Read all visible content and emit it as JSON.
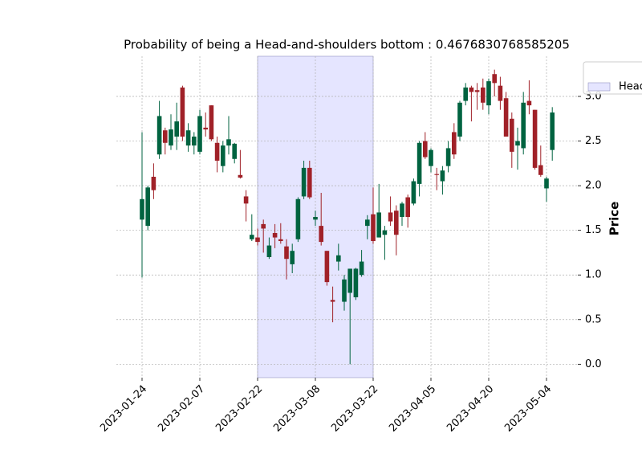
{
  "chart_data": {
    "type": "candlestick",
    "title": "Probability of being a Head-and-shoulders bottom : 0.4676830768585205",
    "y_label": "Price",
    "categories": [
      "2023-01-24",
      null,
      null,
      null,
      null,
      null,
      null,
      null,
      null,
      null,
      "2023-02-07",
      null,
      null,
      null,
      null,
      null,
      null,
      null,
      null,
      null,
      "2023-02-22",
      null,
      null,
      null,
      null,
      null,
      null,
      null,
      null,
      null,
      "2023-03-08",
      null,
      null,
      null,
      null,
      null,
      null,
      null,
      null,
      null,
      "2023-03-22",
      null,
      null,
      null,
      null,
      null,
      null,
      null,
      null,
      null,
      "2023-04-05",
      null,
      null,
      null,
      null,
      null,
      null,
      null,
      null,
      null,
      "2023-04-20",
      null,
      null,
      null,
      null,
      null,
      null,
      null,
      null,
      null,
      "2023-05-04",
      null
    ],
    "open": [
      1.62,
      1.55,
      2.1,
      2.35,
      2.62,
      2.45,
      2.55,
      3.1,
      2.45,
      2.45,
      2.38,
      2.65,
      2.9,
      2.48,
      2.22,
      2.45,
      2.3,
      2.12,
      1.88,
      1.4,
      1.42,
      1.57,
      1.2,
      1.47,
      1.4,
      1.32,
      1.12,
      1.4,
      1.88,
      2.2,
      1.62,
      1.55,
      1.27,
      0.72,
      1.15,
      0.7,
      0.8,
      0.75,
      1.0,
      1.55,
      1.68,
      1.42,
      1.45,
      1.7,
      1.72,
      1.65,
      1.87,
      1.8,
      2.02,
      2.5,
      2.22,
      2.13,
      2.05,
      2.22,
      2.6,
      2.55,
      2.95,
      3.1,
      3.07,
      3.1,
      2.9,
      3.25,
      3.12,
      2.98,
      2.75,
      2.45,
      2.42,
      2.95,
      2.85,
      2.23,
      1.97,
      2.4
    ],
    "high": [
      2.6,
      2.0,
      2.25,
      2.95,
      2.65,
      2.8,
      2.93,
      3.12,
      2.7,
      2.6,
      2.85,
      2.82,
      2.9,
      2.55,
      2.5,
      2.78,
      2.48,
      2.4,
      1.95,
      1.68,
      1.52,
      1.62,
      1.42,
      1.57,
      1.58,
      1.4,
      1.35,
      1.87,
      2.28,
      2.28,
      1.72,
      1.92,
      1.27,
      0.87,
      1.35,
      1.0,
      1.07,
      1.08,
      1.28,
      1.67,
      1.98,
      2.02,
      1.55,
      1.88,
      1.78,
      1.82,
      1.9,
      2.08,
      2.5,
      2.6,
      2.42,
      2.2,
      2.22,
      2.5,
      2.7,
      2.95,
      3.15,
      3.12,
      3.15,
      3.2,
      3.2,
      3.3,
      3.22,
      3.05,
      2.82,
      2.65,
      3.05,
      3.18,
      2.85,
      2.45,
      2.1,
      2.88
    ],
    "low": [
      0.97,
      1.5,
      1.85,
      2.3,
      2.35,
      2.4,
      2.4,
      2.5,
      2.38,
      2.35,
      2.35,
      2.55,
      2.5,
      2.15,
      2.15,
      2.35,
      2.25,
      2.08,
      1.6,
      1.38,
      1.33,
      1.25,
      1.18,
      1.3,
      1.35,
      0.95,
      1.02,
      1.37,
      1.85,
      1.85,
      1.55,
      1.33,
      0.88,
      0.47,
      1.05,
      0.6,
      0.0,
      0.72,
      0.98,
      1.4,
      1.35,
      1.42,
      1.17,
      1.55,
      1.22,
      1.55,
      1.53,
      1.78,
      1.88,
      2.3,
      2.15,
      1.95,
      1.9,
      2.15,
      2.3,
      2.5,
      2.9,
      2.72,
      2.85,
      2.85,
      2.8,
      3.0,
      2.85,
      2.55,
      2.2,
      2.18,
      2.35,
      2.8,
      2.18,
      2.1,
      1.82,
      2.28
    ],
    "close": [
      1.85,
      1.98,
      1.95,
      2.78,
      2.48,
      2.63,
      2.72,
      2.55,
      2.62,
      2.55,
      2.78,
      2.63,
      2.52,
      2.28,
      2.45,
      2.52,
      2.47,
      2.09,
      1.8,
      1.45,
      1.37,
      1.52,
      1.33,
      1.42,
      1.38,
      1.18,
      1.27,
      1.85,
      2.2,
      1.87,
      1.65,
      1.37,
      0.92,
      0.7,
      1.22,
      0.95,
      1.07,
      1.07,
      1.15,
      1.62,
      1.38,
      1.7,
      1.5,
      1.6,
      1.45,
      1.8,
      1.65,
      2.05,
      2.48,
      2.32,
      2.4,
      2.12,
      2.17,
      2.42,
      2.35,
      2.93,
      3.1,
      3.05,
      3.05,
      2.93,
      3.17,
      3.15,
      2.95,
      2.55,
      2.38,
      2.5,
      2.93,
      2.9,
      2.2,
      2.12,
      2.08,
      2.82
    ],
    "up_color": "#006340",
    "down_color": "#a02128",
    "highlight": {
      "name": "Head-and-shoulders bottom",
      "start": "2023-02-22",
      "end": "2023-03-22",
      "color": "#e5e5ff"
    },
    "ylim": [
      -0.15,
      3.45
    ],
    "yticks": [
      {
        "value": 0,
        "label": "0.0"
      },
      {
        "value": 0.5,
        "label": "0.5"
      },
      {
        "value": 1,
        "label": "1.0"
      },
      {
        "value": 1.5,
        "label": "1.5"
      },
      {
        "value": 2,
        "label": "2.0"
      },
      {
        "value": 2.5,
        "label": "2.5"
      },
      {
        "value": 3,
        "label": "3.0"
      }
    ],
    "grid": true,
    "legend": "upper right"
  }
}
